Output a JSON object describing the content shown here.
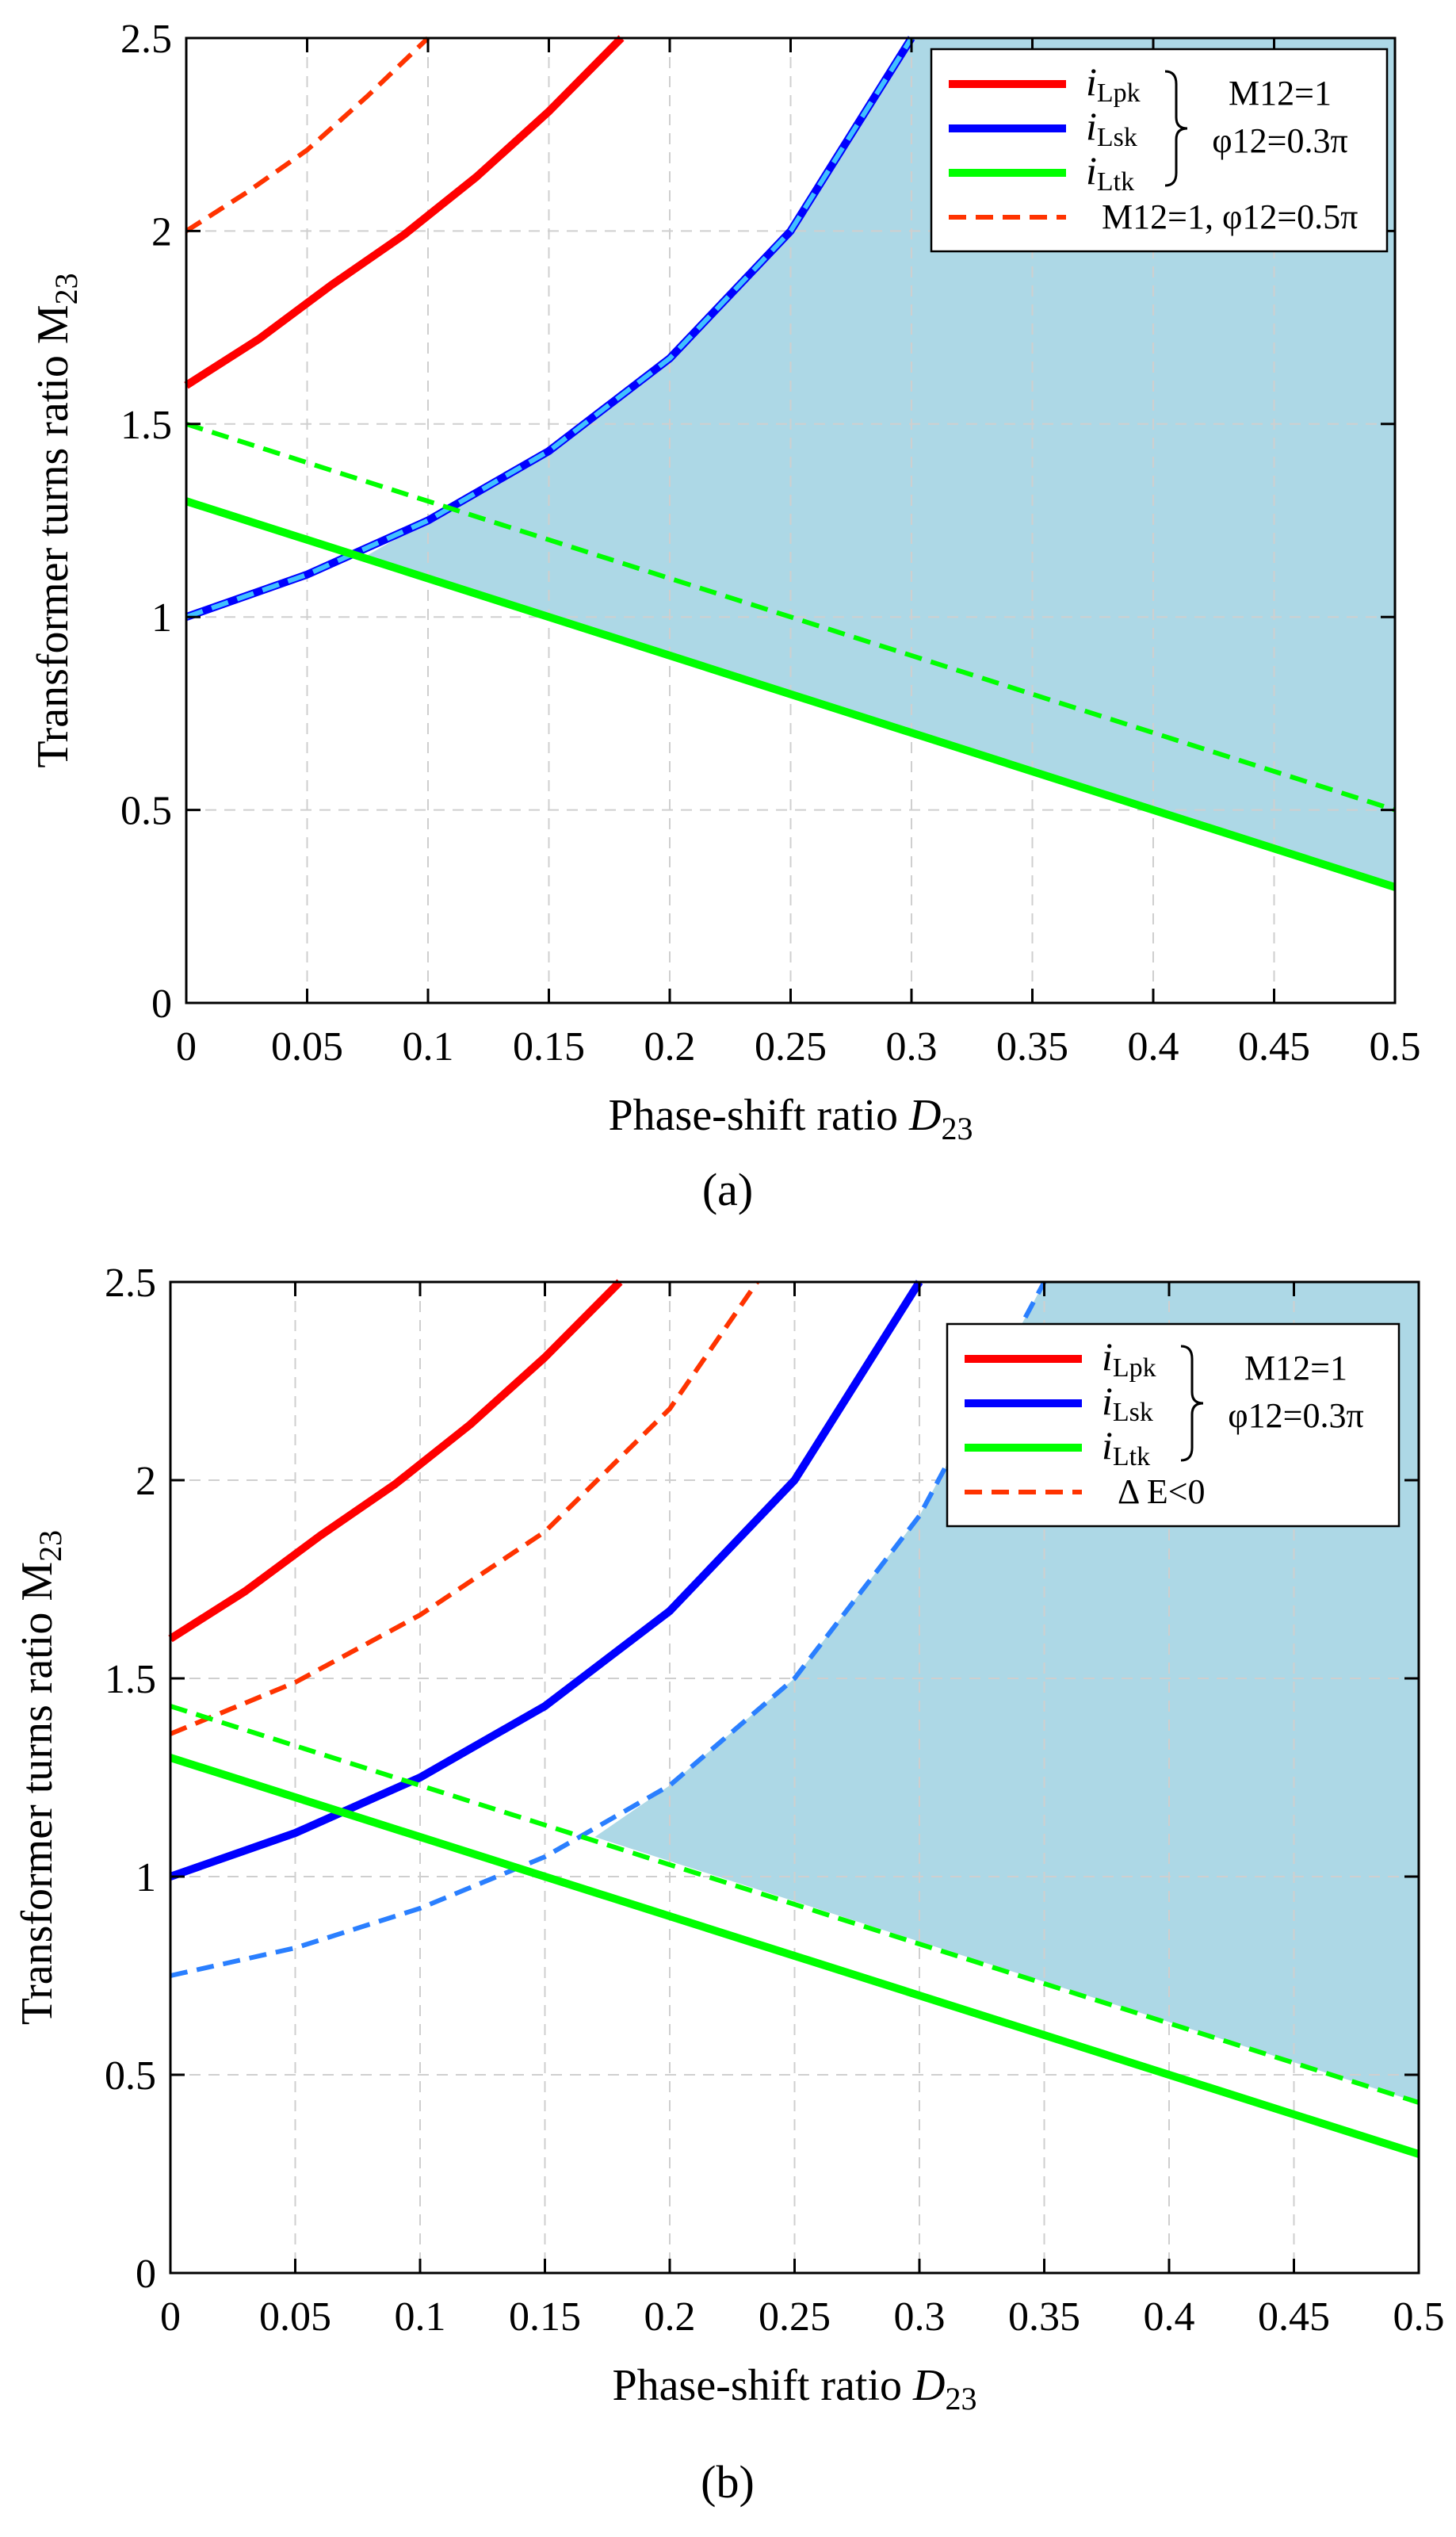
{
  "chart_data": [
    {
      "type": "line",
      "panel": "a",
      "panel_label": "(a)",
      "xlabel": "Phase-shift ratio D23",
      "xlabel_main": "Phase-shift ratio ",
      "xlabel_sym": "D",
      "xlabel_sub": "23",
      "ylabel": "Transformer turns ratio M23",
      "ylabel_main": "Transformer turns ratio M",
      "ylabel_sub": "23",
      "xlim": [
        0,
        0.5
      ],
      "ylim": [
        0,
        2.5
      ],
      "xticks": [
        "0",
        "0.05",
        "0.1",
        "0.15",
        "0.2",
        "0.25",
        "0.3",
        "0.35",
        "0.4",
        "0.45",
        "0.5"
      ],
      "yticks": [
        "0",
        "0.5",
        "1",
        "1.5",
        "2",
        "2.5"
      ],
      "grid": true,
      "legend_position": "top-right",
      "legend": {
        "entries": [
          {
            "sym": "i",
            "sub": "Lpk",
            "color": "#ff0000",
            "style": "solid"
          },
          {
            "sym": "i",
            "sub": "Lsk",
            "color": "#0000ff",
            "style": "solid"
          },
          {
            "sym": "i",
            "sub": "Ltk",
            "color": "#00ff00",
            "style": "solid"
          },
          {
            "text": "M12=1, φ12=0.5π",
            "color": "#ff3300",
            "style": "dashed"
          }
        ],
        "group_label_1": "M12=1",
        "group_label_2": "φ12=0.3π"
      },
      "series": [
        {
          "name": "iLpk (M12=1, φ12=0.3π)",
          "color": "#ff0000",
          "style": "solid",
          "x": [
            0,
            0.03,
            0.06,
            0.09,
            0.12,
            0.15,
            0.18
          ],
          "y": [
            1.6,
            1.72,
            1.86,
            1.99,
            2.14,
            2.31,
            2.5
          ]
        },
        {
          "name": "iLpk (M12=1, φ12=0.5π)",
          "color": "#ff3300",
          "style": "dashed",
          "x": [
            0,
            0.025,
            0.05,
            0.075,
            0.1
          ],
          "y": [
            2.0,
            2.1,
            2.21,
            2.35,
            2.5
          ]
        },
        {
          "name": "iLsk (M12=1, φ12=0.3π)",
          "color": "#0000ff",
          "style": "solid",
          "x": [
            0,
            0.05,
            0.1,
            0.15,
            0.2,
            0.25,
            0.3
          ],
          "y": [
            1.0,
            1.11,
            1.25,
            1.43,
            1.67,
            2.0,
            2.5
          ]
        },
        {
          "name": "iLsk (M12=1, φ12=0.5π)",
          "color": "#40c0ff",
          "style": "dashed",
          "x": [
            0,
            0.05,
            0.1,
            0.15,
            0.2,
            0.25,
            0.3
          ],
          "y": [
            1.0,
            1.11,
            1.25,
            1.43,
            1.67,
            2.0,
            2.5
          ]
        },
        {
          "name": "iLtk (M12=1, φ12=0.3π)",
          "color": "#00ff00",
          "style": "solid",
          "x": [
            0,
            0.5
          ],
          "y": [
            1.3,
            0.3
          ]
        },
        {
          "name": "iLtk (M12=1, φ12=0.5π)",
          "color": "#00ff00",
          "style": "dashed",
          "x": [
            0,
            0.5
          ],
          "y": [
            1.5,
            0.5
          ]
        }
      ],
      "shaded_region": {
        "color": "#add8e6",
        "upper_x": [
          0.075,
          0.1,
          0.15,
          0.2,
          0.25,
          0.3,
          0.5
        ],
        "upper_y": [
          1.16,
          1.25,
          1.43,
          1.67,
          2.0,
          2.5,
          2.5
        ],
        "lower_x": [
          0.5,
          0.075
        ],
        "lower_y": [
          0.3,
          1.15
        ]
      }
    },
    {
      "type": "line",
      "panel": "b",
      "panel_label": "(b)",
      "xlabel": "Phase-shift ratio D23",
      "xlabel_main": "Phase-shift ratio ",
      "xlabel_sym": "D",
      "xlabel_sub": "23",
      "ylabel": "Transformer turns ratio M23",
      "ylabel_main": "Transformer turns ratio M",
      "ylabel_sub": "23",
      "xlim": [
        0,
        0.5
      ],
      "ylim": [
        0,
        2.5
      ],
      "xticks": [
        "0",
        "0.05",
        "0.1",
        "0.15",
        "0.2",
        "0.25",
        "0.3",
        "0.35",
        "0.4",
        "0.45",
        "0.5"
      ],
      "yticks": [
        "0",
        "0.5",
        "1",
        "1.5",
        "2",
        "2.5"
      ],
      "grid": true,
      "legend_position": "top-right",
      "legend": {
        "entries": [
          {
            "sym": "i",
            "sub": "Lpk",
            "color": "#ff0000",
            "style": "solid"
          },
          {
            "sym": "i",
            "sub": "Lsk",
            "color": "#0000ff",
            "style": "solid"
          },
          {
            "sym": "i",
            "sub": "Ltk",
            "color": "#00ff00",
            "style": "solid"
          },
          {
            "text": "Δ E<0",
            "color": "#ff3300",
            "style": "dashed"
          }
        ],
        "group_label_1": "M12=1",
        "group_label_2": "φ12=0.3π"
      },
      "series": [
        {
          "name": "iLpk",
          "color": "#ff0000",
          "style": "solid",
          "x": [
            0,
            0.03,
            0.06,
            0.09,
            0.12,
            0.15,
            0.18
          ],
          "y": [
            1.6,
            1.72,
            1.86,
            1.99,
            2.14,
            2.31,
            2.5
          ]
        },
        {
          "name": "iLpk ΔE<0",
          "color": "#ff3300",
          "style": "dashed",
          "x": [
            0,
            0.05,
            0.1,
            0.15,
            0.2,
            0.235
          ],
          "y": [
            1.36,
            1.49,
            1.66,
            1.87,
            2.18,
            2.5
          ]
        },
        {
          "name": "iLsk",
          "color": "#0000ff",
          "style": "solid",
          "x": [
            0,
            0.05,
            0.1,
            0.15,
            0.2,
            0.25,
            0.3
          ],
          "y": [
            1.0,
            1.11,
            1.25,
            1.43,
            1.67,
            2.0,
            2.5
          ]
        },
        {
          "name": "iLsk ΔE<0",
          "color": "#2a7fff",
          "style": "dashed",
          "x": [
            0,
            0.05,
            0.1,
            0.15,
            0.2,
            0.25,
            0.3,
            0.35
          ],
          "y": [
            0.75,
            0.82,
            0.92,
            1.05,
            1.23,
            1.5,
            1.91,
            2.5
          ]
        },
        {
          "name": "iLtk",
          "color": "#00ff00",
          "style": "solid",
          "x": [
            0,
            0.5
          ],
          "y": [
            1.3,
            0.3
          ]
        },
        {
          "name": "iLtk ΔE<0",
          "color": "#00ff00",
          "style": "dashed",
          "x": [
            0,
            0.5
          ],
          "y": [
            1.43,
            0.43
          ]
        }
      ],
      "shaded_region": {
        "color": "#add8e6",
        "upper_x": [
          0.17,
          0.2,
          0.25,
          0.3,
          0.35,
          0.5
        ],
        "upper_y": [
          1.1,
          1.23,
          1.5,
          1.91,
          2.5,
          2.5
        ],
        "lower_x": [
          0.5,
          0.17
        ],
        "lower_y": [
          0.43,
          1.1
        ]
      }
    }
  ]
}
